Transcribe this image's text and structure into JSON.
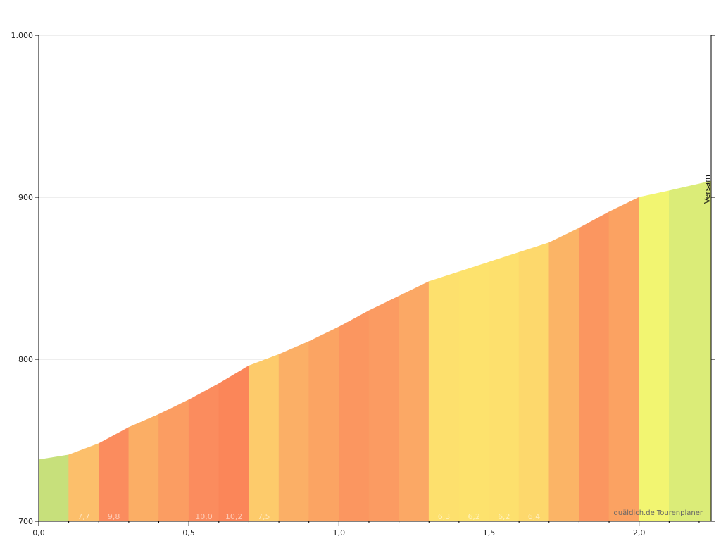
{
  "chart_data": {
    "type": "area",
    "x_tick_labels": [
      "0,0",
      "0,5",
      "1,0",
      "1,5",
      "2,0"
    ],
    "x_ticks": [
      0,
      0.5,
      1.0,
      1.5,
      2.0
    ],
    "y_tick_labels": [
      "700",
      "800",
      "900",
      "1.000"
    ],
    "y_ticks": [
      700,
      800,
      900,
      1000
    ],
    "xlim": [
      0,
      2.24
    ],
    "ylim": [
      700,
      1000
    ],
    "grid": "horizontal",
    "elevation_profile": {
      "x": [
        0.0,
        0.1,
        0.2,
        0.3,
        0.4,
        0.5,
        0.6,
        0.7,
        0.8,
        0.9,
        1.0,
        1.1,
        1.2,
        1.3,
        1.4,
        1.5,
        1.6,
        1.7,
        1.8,
        1.9,
        2.0,
        2.1,
        2.24
      ],
      "y": [
        738,
        741,
        748,
        758,
        766,
        775,
        785,
        796,
        803,
        811,
        820,
        830,
        839,
        848,
        854,
        860,
        866,
        872,
        881,
        891,
        900,
        904,
        910
      ]
    },
    "segments": [
      {
        "start": 0.0,
        "end": 0.1,
        "gradient_label": "",
        "color": "#c7e07b"
      },
      {
        "start": 0.1,
        "end": 0.2,
        "gradient_label": "7,7",
        "color": "#fcbf6b"
      },
      {
        "start": 0.2,
        "end": 0.3,
        "gradient_label": "9,8",
        "color": "#fb8c5e"
      },
      {
        "start": 0.3,
        "end": 0.4,
        "gradient_label": "",
        "color": "#fbae65"
      },
      {
        "start": 0.4,
        "end": 0.5,
        "gradient_label": "",
        "color": "#fb9d62"
      },
      {
        "start": 0.5,
        "end": 0.6,
        "gradient_label": "10,0",
        "color": "#fb8c5e"
      },
      {
        "start": 0.6,
        "end": 0.7,
        "gradient_label": "10,2",
        "color": "#fb8659"
      },
      {
        "start": 0.7,
        "end": 0.8,
        "gradient_label": "7,5",
        "color": "#fdcb6b"
      },
      {
        "start": 0.8,
        "end": 0.9,
        "gradient_label": "",
        "color": "#fbaf66"
      },
      {
        "start": 0.9,
        "end": 1.0,
        "gradient_label": "",
        "color": "#fba463"
      },
      {
        "start": 1.0,
        "end": 1.1,
        "gradient_label": "",
        "color": "#fb9660"
      },
      {
        "start": 1.1,
        "end": 1.2,
        "gradient_label": "",
        "color": "#fb9b62"
      },
      {
        "start": 1.2,
        "end": 1.3,
        "gradient_label": "",
        "color": "#fba865"
      },
      {
        "start": 1.3,
        "end": 1.4,
        "gradient_label": "6,3",
        "color": "#fde06d"
      },
      {
        "start": 1.4,
        "end": 1.5,
        "gradient_label": "6,2",
        "color": "#fde26d"
      },
      {
        "start": 1.5,
        "end": 1.6,
        "gradient_label": "6,2",
        "color": "#fde06d"
      },
      {
        "start": 1.6,
        "end": 1.7,
        "gradient_label": "6,4",
        "color": "#fdd86c"
      },
      {
        "start": 1.7,
        "end": 1.8,
        "gradient_label": "",
        "color": "#fbb466"
      },
      {
        "start": 1.8,
        "end": 1.9,
        "gradient_label": "",
        "color": "#fb9660"
      },
      {
        "start": 1.9,
        "end": 2.0,
        "gradient_label": "",
        "color": "#fba262"
      },
      {
        "start": 2.0,
        "end": 2.1,
        "gradient_label": "",
        "color": "#f2f571"
      },
      {
        "start": 2.1,
        "end": 2.24,
        "gradient_label": "",
        "color": "#dbec78"
      }
    ],
    "place_markers": [
      {
        "x": 2.24,
        "label": "Versam"
      }
    ]
  },
  "credit": "quäldich.de Tourenplaner"
}
